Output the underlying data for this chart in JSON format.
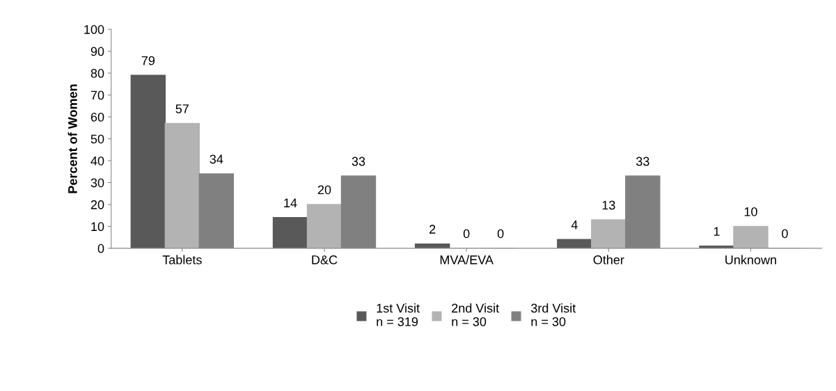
{
  "chart_data": {
    "type": "bar",
    "ylabel": "Percent of Women",
    "categories": [
      "Tablets",
      "D&C",
      "MVA/EVA",
      "Other",
      "Unknown"
    ],
    "series": [
      {
        "name": "1st Visit\nn = 319",
        "color": "#595959",
        "values": [
          79,
          14,
          2,
          4,
          1
        ]
      },
      {
        "name": "2nd Visit\nn = 30",
        "color": "#b3b3b3",
        "values": [
          57,
          20,
          0,
          13,
          10
        ]
      },
      {
        "name": "3rd Visit\nn = 30",
        "color": "#808080",
        "values": [
          34,
          33,
          0,
          33,
          0
        ]
      }
    ],
    "ylim": [
      0,
      100
    ],
    "yticks": [
      0,
      10,
      20,
      30,
      40,
      50,
      60,
      70,
      80,
      90,
      100
    ],
    "data_labels": true,
    "grid": false,
    "legend": "bottom"
  }
}
